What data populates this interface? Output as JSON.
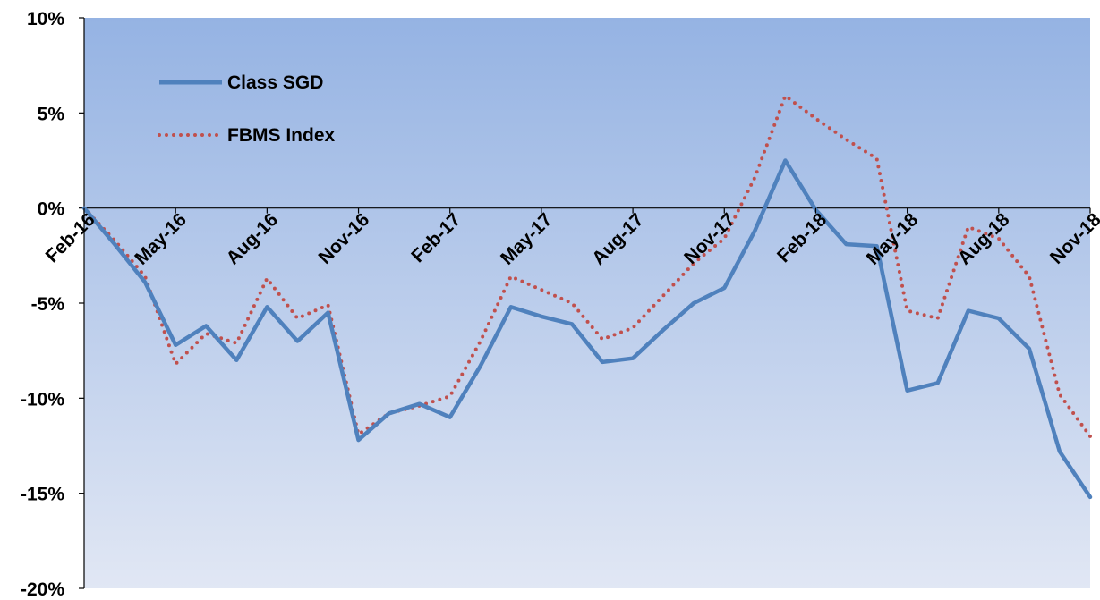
{
  "chart_data": {
    "type": "line",
    "title": "",
    "xlabel": "",
    "ylabel": "",
    "ylim": [
      -20,
      10
    ],
    "y_ticks": [
      10,
      5,
      0,
      -5,
      -10,
      -15,
      -20
    ],
    "y_tick_labels": [
      "10%",
      "5%",
      "0%",
      "-5%",
      "-10%",
      "-15%",
      "-20%"
    ],
    "x_tick_labels": [
      "Feb-16",
      "May-16",
      "Aug-16",
      "Nov-16",
      "Feb-17",
      "May-17",
      "Aug-17",
      "Nov-17",
      "Feb-18",
      "May-18",
      "Aug-18",
      "Nov-18"
    ],
    "x": [
      "Feb-16",
      "Mar-16",
      "Apr-16",
      "May-16",
      "Jun-16",
      "Jul-16",
      "Aug-16",
      "Sep-16",
      "Oct-16",
      "Nov-16",
      "Dec-16",
      "Jan-17",
      "Feb-17",
      "Mar-17",
      "Apr-17",
      "May-17",
      "Jun-17",
      "Jul-17",
      "Aug-17",
      "Sep-17",
      "Oct-17",
      "Nov-17",
      "Dec-17",
      "Jan-18",
      "Feb-18",
      "Mar-18",
      "Apr-18",
      "May-18",
      "Jun-18",
      "Jul-18",
      "Aug-18",
      "Sep-18",
      "Oct-18",
      "Nov-18"
    ],
    "series": [
      {
        "name": "Class SGD",
        "color": "#4f81bd",
        "style": "solid",
        "values": [
          0.0,
          -1.9,
          -3.9,
          -7.2,
          -6.2,
          -8.0,
          -5.2,
          -7.0,
          -5.5,
          -12.2,
          -10.8,
          -10.3,
          -11.0,
          -8.3,
          -5.2,
          -5.7,
          -6.1,
          -8.1,
          -7.9,
          -6.4,
          -5.0,
          -4.2,
          -1.2,
          2.5,
          -0.1,
          -1.9,
          -2.0,
          -9.6,
          -9.2,
          -5.4,
          -5.8,
          -7.4,
          -12.8,
          -15.2
        ]
      },
      {
        "name": "FBMS Index",
        "color": "#c0504d",
        "style": "dotted",
        "values": [
          0.0,
          -1.7,
          -3.6,
          -8.2,
          -6.6,
          -7.1,
          -3.7,
          -5.8,
          -5.1,
          -11.9,
          -10.8,
          -10.4,
          -9.9,
          -7.0,
          -3.6,
          -4.3,
          -5.0,
          -6.9,
          -6.3,
          -4.6,
          -2.9,
          -1.6,
          1.6,
          5.9,
          4.7,
          3.6,
          2.6,
          -5.4,
          -5.8,
          -1.0,
          -1.6,
          -3.6,
          -9.8,
          -12.0
        ]
      }
    ],
    "legend_position": "top-left",
    "grid": false
  }
}
